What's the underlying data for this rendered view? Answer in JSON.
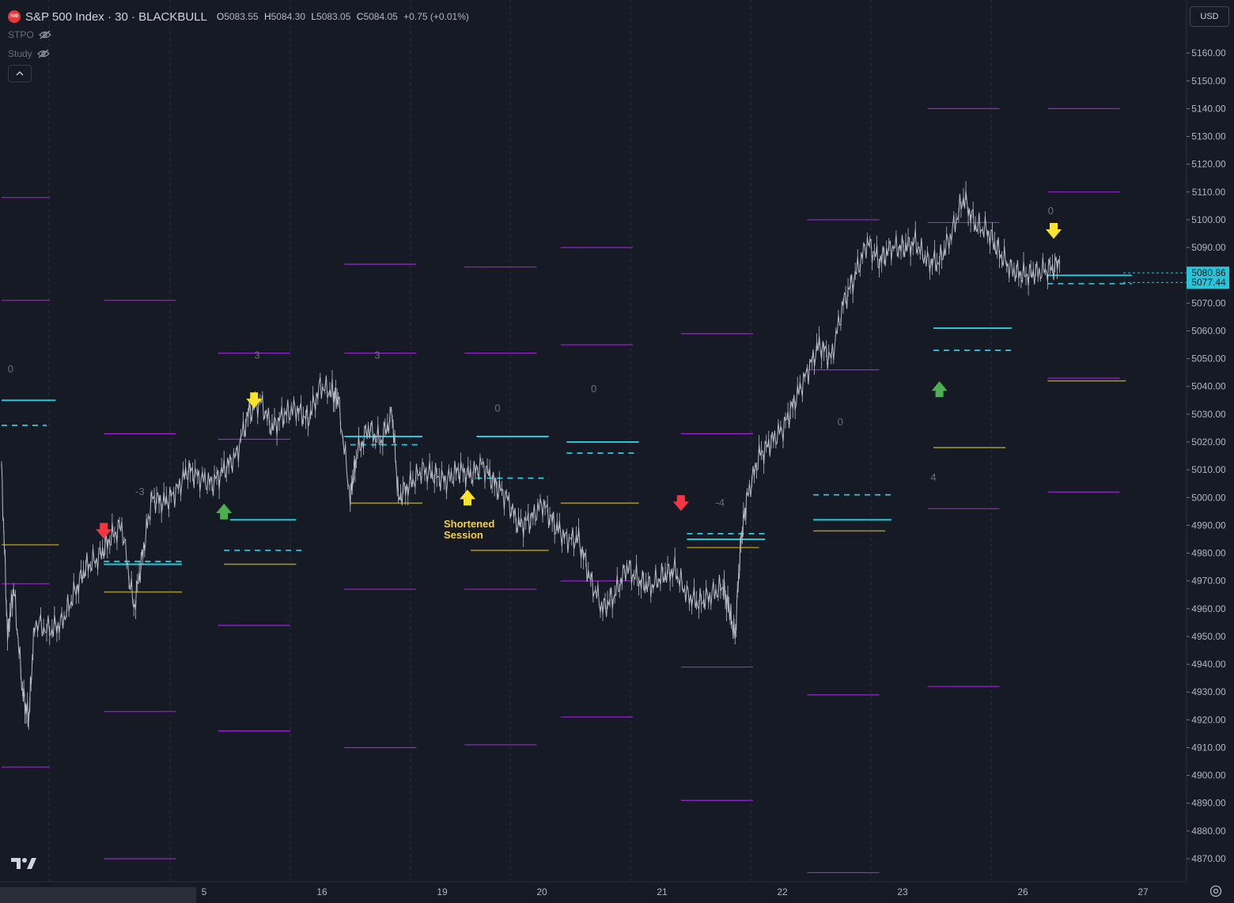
{
  "header": {
    "logo_text": "500",
    "symbol": "S&P 500 Index · 30 · BLACKBULL",
    "ohlc": [
      {
        "k": "O",
        "v": "5083.55"
      },
      {
        "k": "H",
        "v": "5084.30"
      },
      {
        "k": "L",
        "v": "5083.05"
      },
      {
        "k": "C",
        "v": "5084.05"
      }
    ],
    "change": "+0.75 (+0.01%)"
  },
  "indicators": [
    {
      "name": "STPO"
    },
    {
      "name": "Study"
    }
  ],
  "currency": "USD",
  "annotation_shortened": [
    "Shortened",
    "Session"
  ],
  "colors": {
    "bg": "#161a25",
    "magenta": "#a020d8",
    "cyan": "#26c6da",
    "olive": "#9e8f2e",
    "red_arrow": "#f23645",
    "green_arrow": "#4caf50",
    "yellow_arrow": "#fbe22b",
    "price_line": "#b8bcc6"
  },
  "chart_data": {
    "type": "line",
    "title": "S&P 500 Index · 30 · BLACKBULL",
    "ylim": [
      4865,
      5170
    ],
    "y_ticks": [
      4870,
      4880,
      4890,
      4900,
      4910,
      4920,
      4930,
      4940,
      4950,
      4960,
      4970,
      4980,
      4990,
      5000,
      5010,
      5020,
      5030,
      5040,
      5050,
      5060,
      5070,
      5080,
      5090,
      5100,
      5110,
      5120,
      5130,
      5140,
      5150,
      5160
    ],
    "x_tick_labels": [
      "5",
      "16",
      "19",
      "20",
      "21",
      "22",
      "23",
      "26",
      "27"
    ],
    "current_price_labels": [
      "5080.86",
      "5077.44"
    ],
    "price_path": [
      [
        0,
        5010
      ],
      [
        0.1,
        4950
      ],
      [
        0.2,
        4968
      ],
      [
        0.35,
        4930
      ],
      [
        0.45,
        4920
      ],
      [
        0.55,
        4955
      ],
      [
        0.8,
        4952
      ],
      [
        1.0,
        4955
      ],
      [
        1.2,
        4965
      ],
      [
        1.4,
        4975
      ],
      [
        1.6,
        4978
      ],
      [
        1.8,
        4985
      ],
      [
        2.0,
        4990
      ],
      [
        2.2,
        4960
      ],
      [
        2.35,
        4980
      ],
      [
        2.5,
        5000
      ],
      [
        2.7,
        4998
      ],
      [
        2.9,
        5002
      ],
      [
        3.1,
        5010
      ],
      [
        3.3,
        5007
      ],
      [
        3.5,
        5005
      ],
      [
        3.7,
        5010
      ],
      [
        3.9,
        5015
      ],
      [
        4.1,
        5030
      ],
      [
        4.3,
        5035
      ],
      [
        4.5,
        5025
      ],
      [
        4.7,
        5030
      ],
      [
        4.9,
        5032
      ],
      [
        5.1,
        5028
      ],
      [
        5.3,
        5040
      ],
      [
        5.5,
        5038
      ],
      [
        5.6,
        5035
      ],
      [
        5.8,
        5000
      ],
      [
        5.9,
        5015
      ],
      [
        6.1,
        5025
      ],
      [
        6.3,
        5020
      ],
      [
        6.5,
        5030
      ],
      [
        6.6,
        5000
      ],
      [
        6.8,
        5005
      ],
      [
        7.0,
        5010
      ],
      [
        7.2,
        5008
      ],
      [
        7.4,
        5006
      ],
      [
        7.6,
        5010
      ],
      [
        7.8,
        5008
      ],
      [
        8.0,
        5012
      ],
      [
        8.2,
        5005
      ],
      [
        8.4,
        5000
      ],
      [
        8.6,
        4990
      ],
      [
        8.8,
        4992
      ],
      [
        9.0,
        4998
      ],
      [
        9.2,
        4990
      ],
      [
        9.4,
        4985
      ],
      [
        9.6,
        4985
      ],
      [
        9.8,
        4970
      ],
      [
        10.0,
        4960
      ],
      [
        10.2,
        4965
      ],
      [
        10.4,
        4975
      ],
      [
        10.6,
        4970
      ],
      [
        10.8,
        4968
      ],
      [
        11.0,
        4972
      ],
      [
        11.2,
        4974
      ],
      [
        11.4,
        4965
      ],
      [
        11.6,
        4962
      ],
      [
        11.8,
        4965
      ],
      [
        12.0,
        4968
      ],
      [
        12.1,
        4960
      ],
      [
        12.2,
        4950
      ],
      [
        12.3,
        4985
      ],
      [
        12.4,
        5000
      ],
      [
        12.6,
        5015
      ],
      [
        12.8,
        5020
      ],
      [
        13.0,
        5025
      ],
      [
        13.2,
        5035
      ],
      [
        13.4,
        5045
      ],
      [
        13.6,
        5055
      ],
      [
        13.8,
        5050
      ],
      [
        14.0,
        5070
      ],
      [
        14.2,
        5080
      ],
      [
        14.4,
        5092
      ],
      [
        14.6,
        5085
      ],
      [
        14.8,
        5090
      ],
      [
        15.0,
        5090
      ],
      [
        15.2,
        5092
      ],
      [
        15.4,
        5085
      ],
      [
        15.6,
        5085
      ],
      [
        15.8,
        5095
      ],
      [
        16.0,
        5108
      ],
      [
        16.2,
        5098
      ],
      [
        16.4,
        5096
      ],
      [
        16.6,
        5088
      ],
      [
        16.8,
        5082
      ],
      [
        17.0,
        5080
      ],
      [
        17.2,
        5081
      ],
      [
        17.4,
        5082
      ],
      [
        17.6,
        5084
      ]
    ],
    "session_lines": {
      "magenta": [
        [
          0,
          0.8,
          5108
        ],
        [
          0,
          0.8,
          5071
        ],
        [
          0,
          0.8,
          4969
        ],
        [
          0,
          0.8,
          4903
        ],
        [
          1.7,
          2.9,
          5071
        ],
        [
          1.7,
          2.9,
          5023
        ],
        [
          1.7,
          2.9,
          4923
        ],
        [
          1.7,
          2.9,
          4870
        ],
        [
          3.6,
          4.8,
          5052
        ],
        [
          3.6,
          4.8,
          5021
        ],
        [
          3.6,
          4.8,
          4954
        ],
        [
          3.6,
          4.8,
          4916
        ],
        [
          5.7,
          6.9,
          5084
        ],
        [
          5.7,
          6.9,
          5052
        ],
        [
          5.7,
          6.9,
          4967
        ],
        [
          5.7,
          6.9,
          4910
        ],
        [
          7.7,
          8.9,
          5083
        ],
        [
          7.7,
          8.9,
          5052
        ],
        [
          7.7,
          8.9,
          4967
        ],
        [
          7.7,
          8.9,
          4911
        ],
        [
          9.3,
          10.5,
          5090
        ],
        [
          9.3,
          10.5,
          5055
        ],
        [
          9.3,
          10.5,
          4970
        ],
        [
          9.3,
          10.5,
          4921
        ],
        [
          11.3,
          12.5,
          5059
        ],
        [
          11.3,
          12.5,
          5023
        ],
        [
          11.3,
          12.5,
          4939
        ],
        [
          11.3,
          12.5,
          4891
        ],
        [
          13.4,
          14.6,
          5100
        ],
        [
          13.4,
          14.6,
          5046
        ],
        [
          13.4,
          14.6,
          4929
        ],
        [
          13.4,
          14.6,
          4865
        ],
        [
          15.4,
          16.6,
          5140
        ],
        [
          15.4,
          16.6,
          5099
        ],
        [
          15.4,
          16.6,
          4996
        ],
        [
          15.4,
          16.6,
          4932
        ],
        [
          17.4,
          18.6,
          5140
        ],
        [
          17.4,
          18.6,
          5110
        ],
        [
          17.4,
          18.6,
          5043
        ],
        [
          17.4,
          18.6,
          5002
        ]
      ],
      "cyan_solid": [
        [
          0,
          0.9,
          5035
        ],
        [
          1.7,
          3.0,
          4976
        ],
        [
          3.8,
          4.9,
          4992
        ],
        [
          5.7,
          7.0,
          5022
        ],
        [
          7.9,
          9.1,
          5022
        ],
        [
          9.4,
          10.6,
          5020
        ],
        [
          11.4,
          12.7,
          4985
        ],
        [
          13.5,
          14.8,
          4992
        ],
        [
          15.5,
          16.8,
          5061
        ],
        [
          17.4,
          18.8,
          5080
        ]
      ],
      "cyan_dashed": [
        [
          0,
          0.75,
          5026
        ],
        [
          1.7,
          3.0,
          4977
        ],
        [
          3.7,
          5.0,
          4981
        ],
        [
          5.8,
          7.0,
          5019
        ],
        [
          7.9,
          9.1,
          5007
        ],
        [
          9.4,
          10.6,
          5016
        ],
        [
          11.4,
          12.7,
          4987
        ],
        [
          13.5,
          14.8,
          5001
        ],
        [
          15.5,
          16.8,
          5053
        ],
        [
          17.4,
          18.8,
          5077
        ]
      ],
      "olive": [
        [
          0,
          0.95,
          4983
        ],
        [
          1.7,
          3.0,
          4966
        ],
        [
          3.7,
          4.9,
          4976
        ],
        [
          5.8,
          7.0,
          4998
        ],
        [
          7.8,
          9.1,
          4981
        ],
        [
          9.3,
          10.6,
          4998
        ],
        [
          11.4,
          12.6,
          4982
        ],
        [
          13.5,
          14.7,
          4988
        ],
        [
          15.5,
          16.7,
          5018
        ],
        [
          17.4,
          18.7,
          5042
        ]
      ]
    },
    "markers": [
      {
        "type": "red-down",
        "x": 1.7,
        "y": 4988
      },
      {
        "type": "green-up",
        "x": 3.7,
        "y": 4995
      },
      {
        "type": "yellow-down",
        "x": 4.2,
        "y": 5035
      },
      {
        "type": "yellow-up",
        "x": 7.75,
        "y": 5000
      },
      {
        "type": "red-down",
        "x": 11.3,
        "y": 4998
      },
      {
        "type": "green-up",
        "x": 15.6,
        "y": 5039
      },
      {
        "type": "yellow-down",
        "x": 17.5,
        "y": 5096
      }
    ],
    "count_labels": [
      {
        "x": 0.15,
        "y": 5045,
        "text": "0"
      },
      {
        "x": 2.3,
        "y": 5001,
        "text": "-3"
      },
      {
        "x": 4.25,
        "y": 5050,
        "text": "3"
      },
      {
        "x": 6.25,
        "y": 5050,
        "text": "3"
      },
      {
        "x": 8.25,
        "y": 5031,
        "text": "0"
      },
      {
        "x": 9.85,
        "y": 5038,
        "text": "0"
      },
      {
        "x": 11.95,
        "y": 4997,
        "text": "-4"
      },
      {
        "x": 13.95,
        "y": 5026,
        "text": "0"
      },
      {
        "x": 15.5,
        "y": 5006,
        "text": "4"
      },
      {
        "x": 17.45,
        "y": 5102,
        "text": "0"
      }
    ]
  }
}
